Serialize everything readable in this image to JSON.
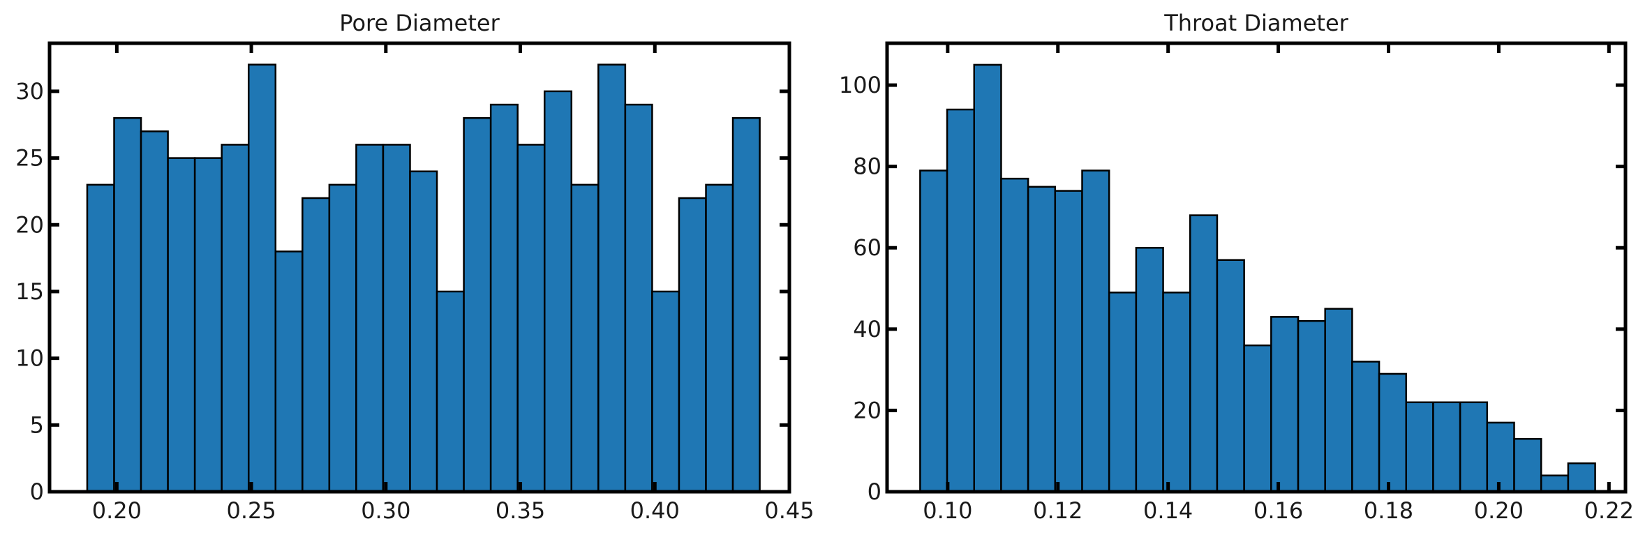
{
  "chart_data": [
    {
      "type": "bar",
      "title": "Pore Diameter",
      "xlim": [
        0.175,
        0.45
      ],
      "ylim": [
        0,
        33.6
      ],
      "bin_start": 0.189,
      "bin_width": 0.01,
      "values": [
        23,
        28,
        27,
        25,
        25,
        26,
        32,
        18,
        22,
        23,
        26,
        26,
        24,
        15,
        28,
        29,
        26,
        30,
        23,
        32,
        29,
        15,
        22,
        23,
        28
      ],
      "xticks": [
        0.2,
        0.25,
        0.3,
        0.35,
        0.4,
        0.45
      ],
      "xtick_labels": [
        "0.20",
        "0.25",
        "0.30",
        "0.35",
        "0.40",
        "0.45"
      ],
      "yticks": [
        0,
        5,
        10,
        15,
        20,
        25,
        30
      ],
      "ytick_labels": [
        "0",
        "5",
        "10",
        "15",
        "20",
        "25",
        "30"
      ],
      "bar_color": "#1f77b4",
      "edge_color": "#000000"
    },
    {
      "type": "bar",
      "title": "Throat Diameter",
      "xlim": [
        0.089,
        0.223
      ],
      "ylim": [
        0,
        110.3
      ],
      "bin_start": 0.095,
      "bin_width": 0.0049,
      "values": [
        79,
        94,
        105,
        77,
        75,
        74,
        79,
        49,
        60,
        49,
        68,
        57,
        36,
        43,
        42,
        45,
        32,
        29,
        22,
        22,
        22,
        17,
        13,
        4,
        7
      ],
      "xticks": [
        0.1,
        0.12,
        0.14,
        0.16,
        0.18,
        0.2,
        0.22
      ],
      "xtick_labels": [
        "0.10",
        "0.12",
        "0.14",
        "0.16",
        "0.18",
        "0.20",
        "0.22"
      ],
      "yticks": [
        0,
        20,
        40,
        60,
        80,
        100
      ],
      "ytick_labels": [
        "0",
        "20",
        "40",
        "60",
        "80",
        "100"
      ],
      "bar_color": "#1f77b4",
      "edge_color": "#000000"
    }
  ]
}
